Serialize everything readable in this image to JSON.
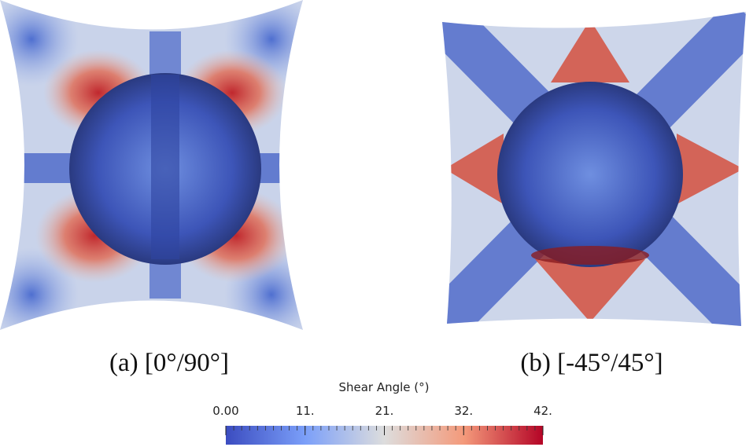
{
  "panels": [
    {
      "caption": "(a) [0°/90°]"
    },
    {
      "caption": "(b) [-45°/45°]"
    }
  ],
  "colorbar": {
    "title": "Shear Angle (°)",
    "tick_labels": [
      "0.00",
      "11.",
      "21.",
      "32.",
      "42."
    ]
  }
}
